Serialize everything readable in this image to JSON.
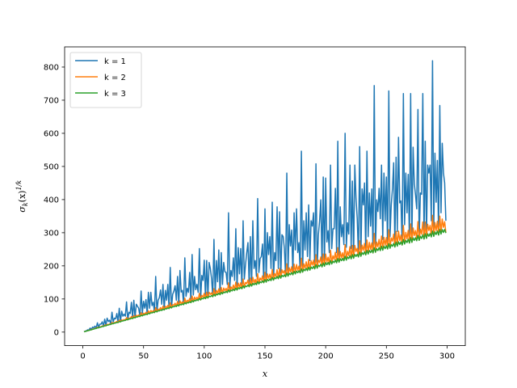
{
  "chart_data": {
    "type": "line",
    "title": "",
    "xlabel": "x",
    "ylabel_main": "σ",
    "ylabel_sub": "k",
    "ylabel_paren": "(x)",
    "ylabel_sup": "1/k",
    "x_range": [
      1,
      299
    ],
    "xlim": [
      -15,
      315
    ],
    "ylim": [
      -40.9,
      860.9
    ],
    "xticks": [
      0,
      50,
      100,
      150,
      200,
      250,
      300
    ],
    "yticks": [
      0,
      100,
      200,
      300,
      400,
      500,
      600,
      700,
      800
    ],
    "grid": false,
    "legend_position": "top-left",
    "series": [
      {
        "name": "k = 1",
        "k": 1,
        "color": "#1f77b4"
      },
      {
        "name": "k = 2",
        "k": 2,
        "color": "#ff7f0e"
      },
      {
        "name": "k = 3",
        "k": 3,
        "color": "#2ca02c"
      }
    ]
  }
}
